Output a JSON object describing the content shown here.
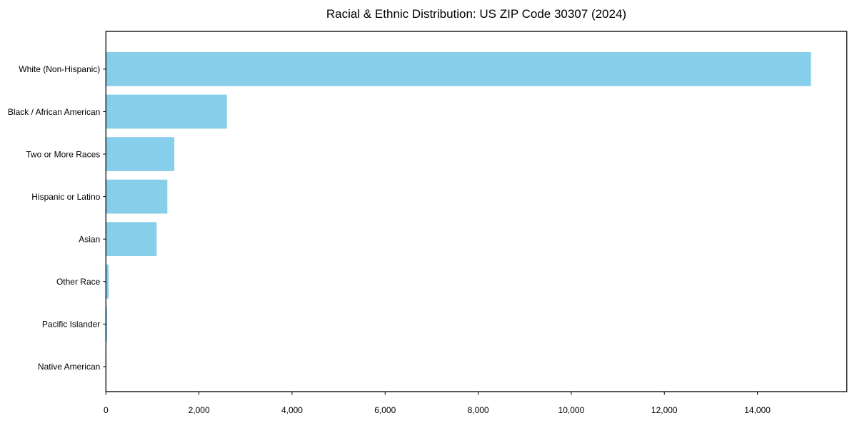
{
  "page": {
    "background_color": "#ffffff"
  },
  "chart_data": {
    "type": "bar",
    "orientation": "horizontal",
    "title": "Racial & Ethnic Distribution: US ZIP Code 30307 (2024)",
    "categories": [
      "White (Non-Hispanic)",
      "Black / African American",
      "Two or More Races",
      "Hispanic or Latino",
      "Asian",
      "Other Race",
      "Pacific Islander",
      "Native American"
    ],
    "values": [
      15150,
      2600,
      1470,
      1320,
      1090,
      60,
      25,
      8
    ],
    "xlabel": "",
    "ylabel": "",
    "xlim": [
      0,
      15920
    ],
    "x_ticks": [
      0,
      2000,
      4000,
      6000,
      8000,
      10000,
      12000,
      14000
    ],
    "x_tick_labels": [
      "0",
      "2,000",
      "4,000",
      "6,000",
      "8,000",
      "10,000",
      "12,000",
      "14,000"
    ],
    "grid": false,
    "legend": null,
    "bar_color": "#87CEEB",
    "axis_color": "#000000",
    "text_color": "#000000"
  }
}
